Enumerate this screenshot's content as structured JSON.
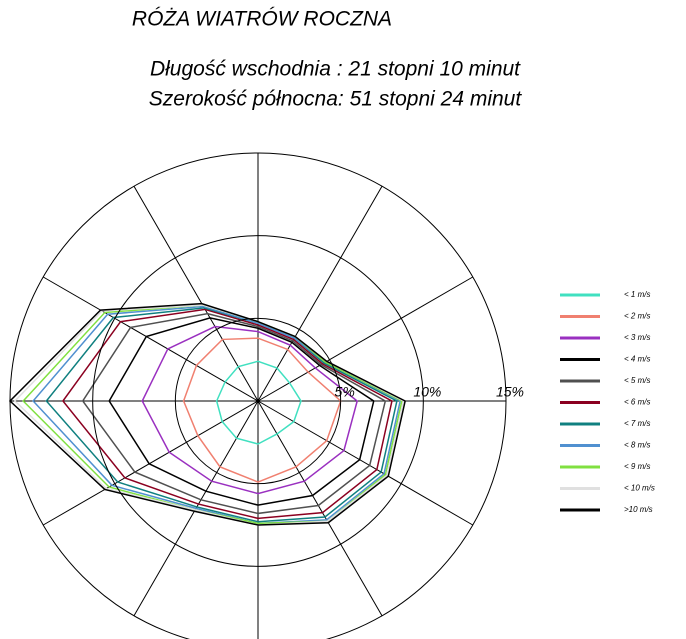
{
  "chart_data": {
    "type": "radar",
    "title": "RÓŻA WIATRÓW ROCZNA",
    "subtitle": [
      "Długość wschodnia :  21 stopni  10 minut",
      "Szerokość północna:  51 stopni  24 minut"
    ],
    "rlim": [
      0,
      15
    ],
    "rticks": [
      {
        "value": 5,
        "label": "5%"
      },
      {
        "value": 10,
        "label": "10%"
      },
      {
        "value": 15,
        "label": "15%"
      }
    ],
    "series": [
      {
        "name": "< 1 m/s",
        "color": "#40e0c0",
        "values": [
          2.4,
          2.3,
          2.2,
          2.6,
          2.5,
          2.3,
          2.6,
          2.6,
          2.5,
          2.5,
          2.3,
          2.4
        ]
      },
      {
        "name": "< 2 m/s",
        "color": "#f08070",
        "values": [
          3.8,
          3.6,
          3.5,
          5.0,
          4.8,
          4.6,
          4.9,
          4.6,
          4.2,
          4.5,
          4.3,
          4.3
        ]
      },
      {
        "name": "< 3 m/s",
        "color": "#9a30c0",
        "values": [
          4.2,
          3.9,
          4.0,
          6.0,
          6.0,
          5.6,
          5.6,
          5.6,
          6.2,
          7.0,
          6.3,
          5.2
        ]
      },
      {
        "name": "< 4 m/s",
        "color": "#000000",
        "values": [
          4.4,
          4.1,
          4.3,
          7.0,
          7.1,
          6.6,
          6.3,
          6.3,
          7.6,
          9.0,
          7.8,
          5.8
        ]
      },
      {
        "name": "< 5 m/s",
        "color": "#505050",
        "values": [
          4.5,
          4.2,
          4.4,
          7.7,
          7.8,
          7.3,
          6.8,
          6.9,
          8.6,
          10.6,
          8.9,
          6.1
        ]
      },
      {
        "name": "< 6 m/s",
        "color": "#8b0020",
        "values": [
          4.6,
          4.3,
          4.5,
          8.1,
          8.3,
          7.8,
          7.1,
          7.2,
          9.3,
          11.8,
          9.6,
          6.4
        ]
      },
      {
        "name": "< 7 m/s",
        "color": "#108080",
        "values": [
          4.7,
          4.4,
          4.6,
          8.4,
          8.6,
          8.1,
          7.3,
          7.4,
          9.8,
          12.8,
          10.1,
          6.5
        ]
      },
      {
        "name": "< 8 m/s",
        "color": "#5090d0",
        "values": [
          4.7,
          4.4,
          4.7,
          8.6,
          8.8,
          8.3,
          7.4,
          7.5,
          10.2,
          13.6,
          10.5,
          6.6
        ]
      },
      {
        "name": "< 9 m/s",
        "color": "#80e040",
        "values": [
          4.8,
          4.5,
          4.7,
          8.7,
          8.9,
          8.4,
          7.4,
          7.6,
          10.4,
          14.2,
          10.7,
          6.7
        ]
      },
      {
        "name": "< 10 m/s",
        "color": "#e0e0e0",
        "values": [
          4.8,
          4.5,
          4.8,
          8.8,
          9.0,
          8.4,
          7.5,
          7.6,
          10.6,
          14.7,
          10.9,
          6.7
        ]
      },
      {
        "name": ">10 m/s",
        "color": "#000000",
        "values": [
          4.8,
          4.5,
          4.8,
          8.9,
          9.1,
          8.5,
          7.5,
          7.7,
          10.7,
          15,
          11,
          6.8
        ]
      }
    ]
  }
}
